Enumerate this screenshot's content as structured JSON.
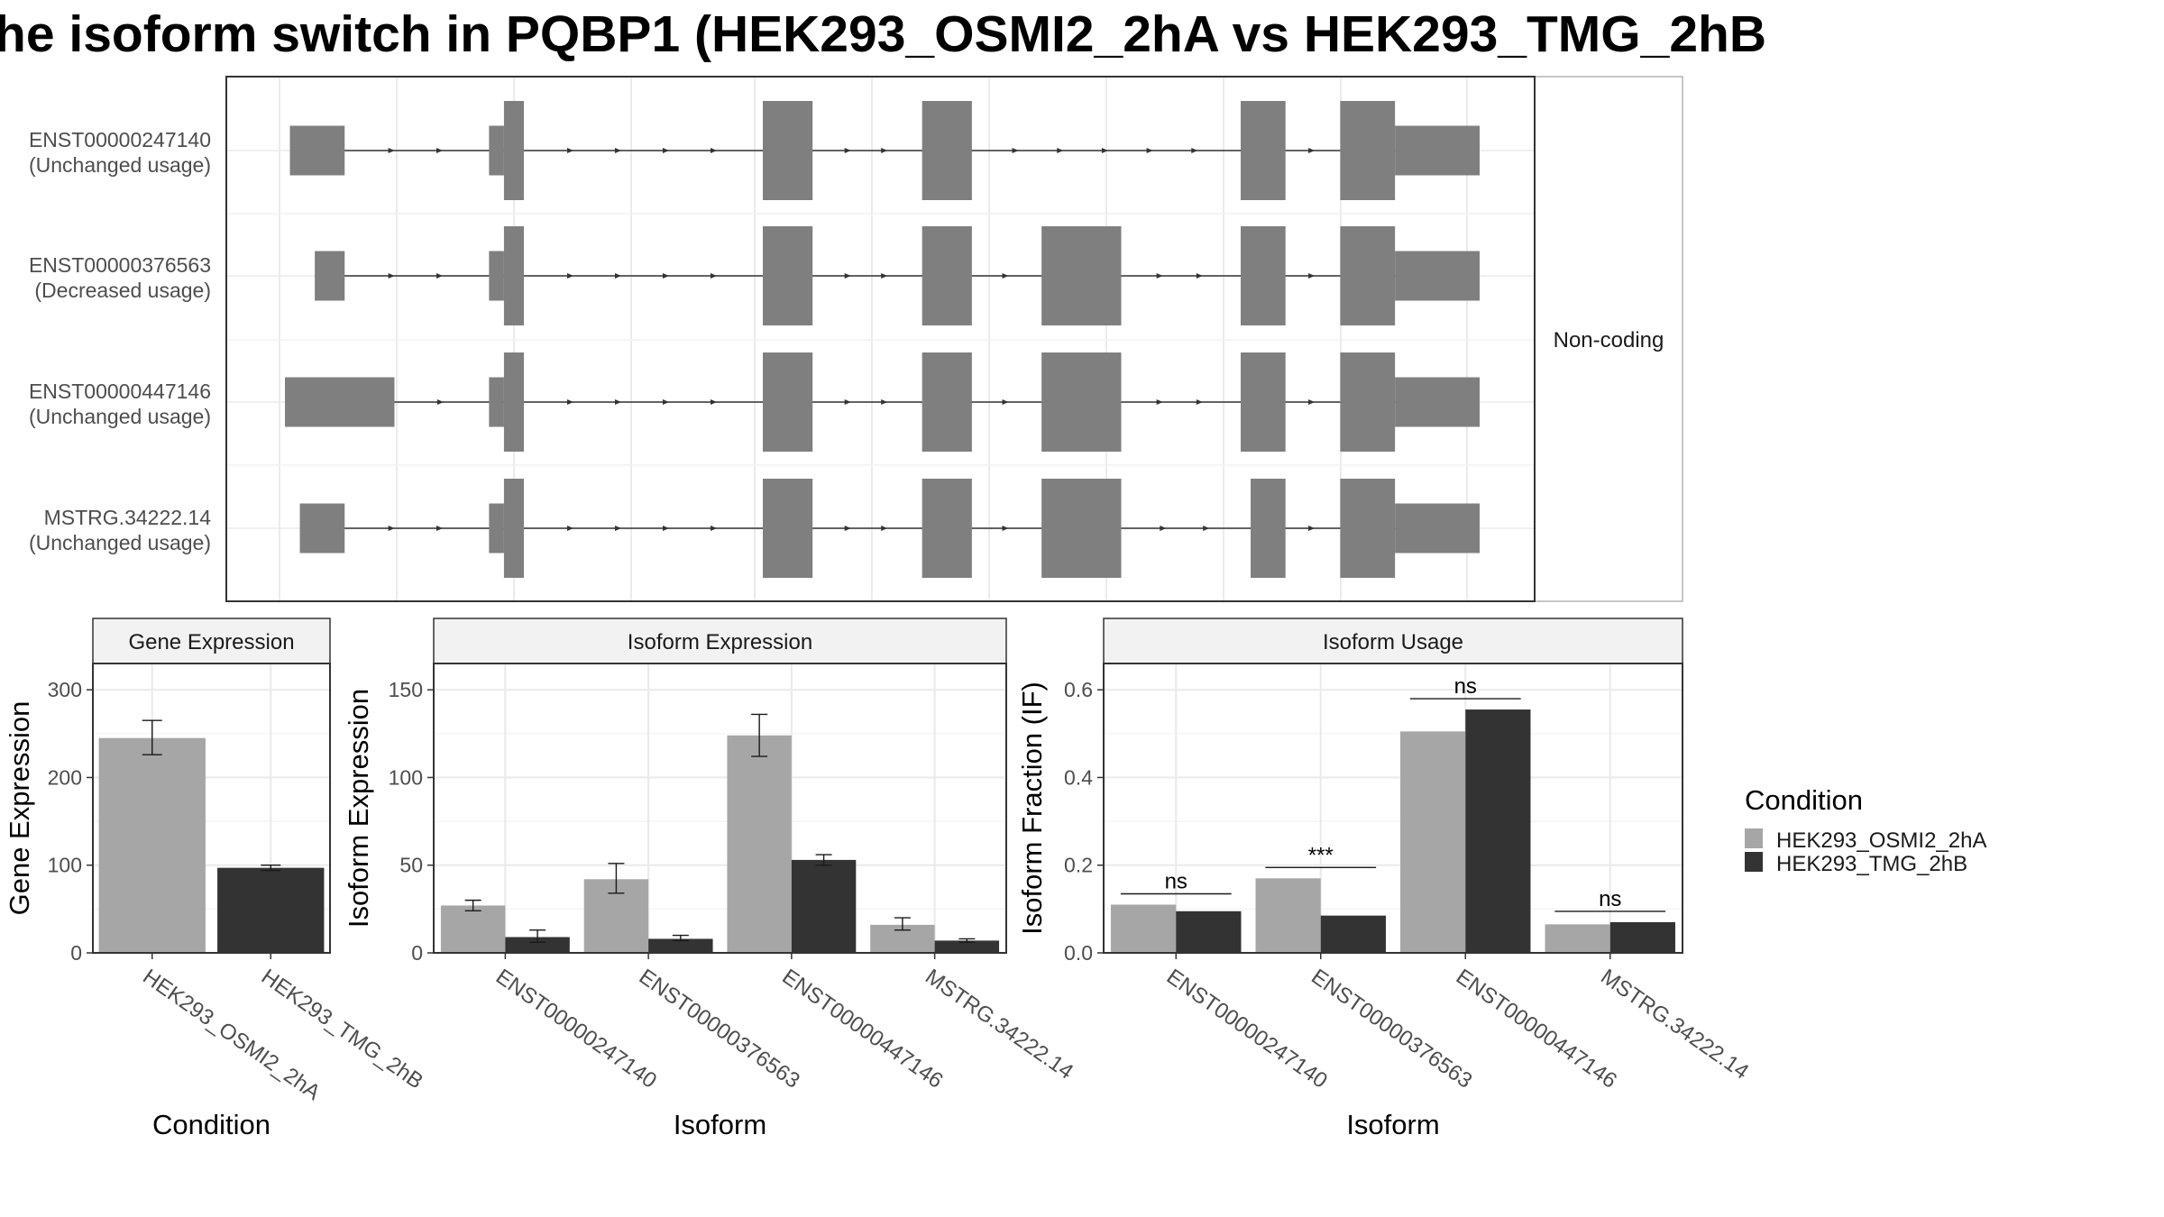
{
  "title": "he isoform switch in PQBP1 (HEK293_OSMI2_2hA vs HEK293_TMG_2hB",
  "colors": {
    "cond_a": "#a6a6a6",
    "cond_b": "#333333",
    "exon": "#7f7f7f",
    "grid": "#ebebeb",
    "border": "#333333"
  },
  "chart_data": [
    {
      "type": "gene_structure",
      "name": "isoform-structures",
      "strip_label": "Non-coding",
      "tracks": [
        {
          "id": "ENST00000247140",
          "usage": "(Unchanged usage)",
          "exons": [
            [
              1,
              12,
              "utr"
            ],
            [
              41,
              44,
              "utr"
            ],
            [
              44,
              48,
              "cds"
            ],
            [
              96,
              106,
              "cds"
            ],
            [
              128,
              138,
              "cds"
            ],
            [
              192,
              201,
              "cds"
            ],
            [
              212,
              223,
              "cds"
            ],
            [
              223,
              240,
              "utr"
            ]
          ]
        },
        {
          "id": "ENST00000376563",
          "usage": "(Decreased usage)",
          "exons": [
            [
              6,
              12,
              "utr"
            ],
            [
              41,
              44,
              "utr"
            ],
            [
              44,
              48,
              "cds"
            ],
            [
              96,
              106,
              "cds"
            ],
            [
              128,
              138,
              "cds"
            ],
            [
              152,
              168,
              "cds"
            ],
            [
              192,
              201,
              "cds"
            ],
            [
              212,
              223,
              "cds"
            ],
            [
              223,
              240,
              "utr"
            ]
          ]
        },
        {
          "id": "ENST00000447146",
          "usage": "(Unchanged usage)",
          "exons": [
            [
              0,
              22,
              "utr"
            ],
            [
              41,
              44,
              "utr"
            ],
            [
              44,
              48,
              "cds"
            ],
            [
              96,
              106,
              "cds"
            ],
            [
              128,
              138,
              "cds"
            ],
            [
              152,
              168,
              "cds"
            ],
            [
              192,
              201,
              "cds"
            ],
            [
              212,
              223,
              "cds"
            ],
            [
              223,
              240,
              "utr"
            ]
          ]
        },
        {
          "id": "MSTRG.34222.14",
          "usage": "(Unchanged usage)",
          "exons": [
            [
              3,
              12,
              "utr"
            ],
            [
              41,
              44,
              "utr"
            ],
            [
              44,
              48,
              "cds"
            ],
            [
              96,
              106,
              "cds"
            ],
            [
              128,
              138,
              "cds"
            ],
            [
              152,
              168,
              "cds"
            ],
            [
              194,
              201,
              "cds"
            ],
            [
              212,
              223,
              "cds"
            ],
            [
              223,
              240,
              "utr"
            ]
          ]
        }
      ]
    },
    {
      "type": "bar",
      "name": "gene-expression",
      "strip_label": "Gene Expression",
      "xlabel": "Condition",
      "ylabel": "Gene Expression",
      "ylim": [
        0,
        330
      ],
      "yticks": [
        0,
        100,
        200,
        300
      ],
      "categories": [
        "HEK293_OSMI2_2hA",
        "HEK293_TMG_2hB"
      ],
      "values": [
        245,
        97
      ],
      "error_low": [
        226,
        94
      ],
      "error_high": [
        265,
        100
      ],
      "colors": [
        "#a6a6a6",
        "#333333"
      ]
    },
    {
      "type": "bar",
      "name": "isoform-expression",
      "strip_label": "Isoform Expression",
      "xlabel": "Isoform",
      "ylabel": "Isoform Expression",
      "ylim": [
        0,
        165
      ],
      "yticks": [
        0,
        50,
        100,
        150
      ],
      "categories": [
        "ENST00000247140",
        "ENST00000376563",
        "ENST00000447146",
        "MSTRG.34222.14"
      ],
      "series": [
        {
          "name": "HEK293_OSMI2_2hA",
          "values": [
            27,
            42,
            124,
            16
          ],
          "error_low": [
            24,
            34,
            112,
            13
          ],
          "error_high": [
            30,
            51,
            136,
            20
          ]
        },
        {
          "name": "HEK293_TMG_2hB",
          "values": [
            9,
            8,
            53,
            7
          ],
          "error_low": [
            6,
            7,
            50,
            6
          ],
          "error_high": [
            13,
            10,
            56,
            8
          ]
        }
      ]
    },
    {
      "type": "bar",
      "name": "isoform-usage",
      "strip_label": "Isoform Usage",
      "xlabel": "Isoform",
      "ylabel": "Isoform Fraction (IF)",
      "ylim": [
        0,
        0.66
      ],
      "yticks": [
        0.0,
        0.2,
        0.4,
        0.6
      ],
      "ytick_labels": [
        "0.0",
        "0.2",
        "0.4",
        "0.6"
      ],
      "categories": [
        "ENST00000247140",
        "ENST00000376563",
        "ENST00000447146",
        "MSTRG.34222.14"
      ],
      "series": [
        {
          "name": "HEK293_OSMI2_2hA",
          "values": [
            0.11,
            0.17,
            0.505,
            0.065
          ]
        },
        {
          "name": "HEK293_TMG_2hB",
          "values": [
            0.095,
            0.085,
            0.555,
            0.07
          ]
        }
      ],
      "significance": [
        "ns",
        "***",
        "ns",
        "ns"
      ]
    }
  ],
  "legend": {
    "title": "Condition",
    "items": [
      {
        "label": "HEK293_OSMI2_2hA",
        "color": "#a6a6a6"
      },
      {
        "label": "HEK293_TMG_2hB",
        "color": "#333333"
      }
    ]
  }
}
